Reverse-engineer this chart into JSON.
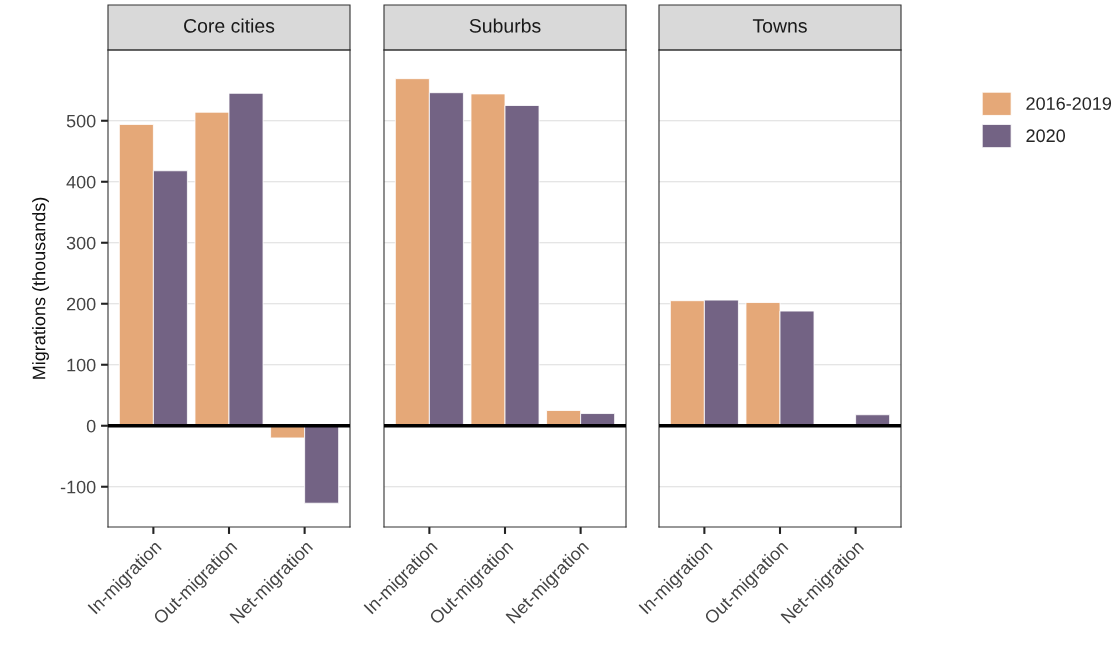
{
  "chart_data": [
    {
      "type": "bar",
      "title": "Core cities",
      "ylabel": "Migrations (thousands)",
      "categories": [
        "In-migration",
        "Out-migration",
        "Net-migration"
      ],
      "series": [
        {
          "name": "2016-2019",
          "color": "#e5a878",
          "values": [
            494,
            514,
            -20
          ]
        },
        {
          "name": "2020",
          "color": "#736384",
          "values": [
            418,
            545,
            -127
          ]
        }
      ],
      "ylim": [
        -166,
        616
      ],
      "yticks": [
        -100,
        0,
        100,
        200,
        300,
        400,
        500
      ],
      "grid": "y",
      "legend": "right",
      "ref_lines": [
        {
          "axis": "y",
          "value": 0,
          "color": "#000000"
        }
      ]
    },
    {
      "type": "bar",
      "title": "Suburbs",
      "categories": [
        "In-migration",
        "Out-migration",
        "Net-migration"
      ],
      "series": [
        {
          "color": "#e5a878",
          "values": [
            569,
            544,
            25
          ]
        },
        {
          "color": "#736384",
          "values": [
            546,
            525,
            20
          ]
        }
      ],
      "ylim": [
        -166,
        616
      ],
      "yticks": [
        -100,
        0,
        100,
        200,
        300,
        400,
        500
      ],
      "grid": "y",
      "tick_labels": "x",
      "ref_lines": [
        {
          "axis": "y",
          "value": 0,
          "color": "#000000"
        }
      ]
    },
    {
      "type": "bar",
      "title": "Towns",
      "categories": [
        "In-migration",
        "Out-migration",
        "Net-migration"
      ],
      "series": [
        {
          "color": "#e5a878",
          "values": [
            205,
            202,
            null
          ]
        },
        {
          "color": "#736384",
          "values": [
            206,
            188,
            18
          ]
        }
      ],
      "ylim": [
        -166,
        616
      ],
      "yticks": [
        -100,
        0,
        100,
        200,
        300,
        400,
        500
      ],
      "grid": "y",
      "tick_labels": "x",
      "ref_lines": [
        {
          "axis": "y",
          "value": 0,
          "color": "#000000"
        }
      ]
    }
  ]
}
